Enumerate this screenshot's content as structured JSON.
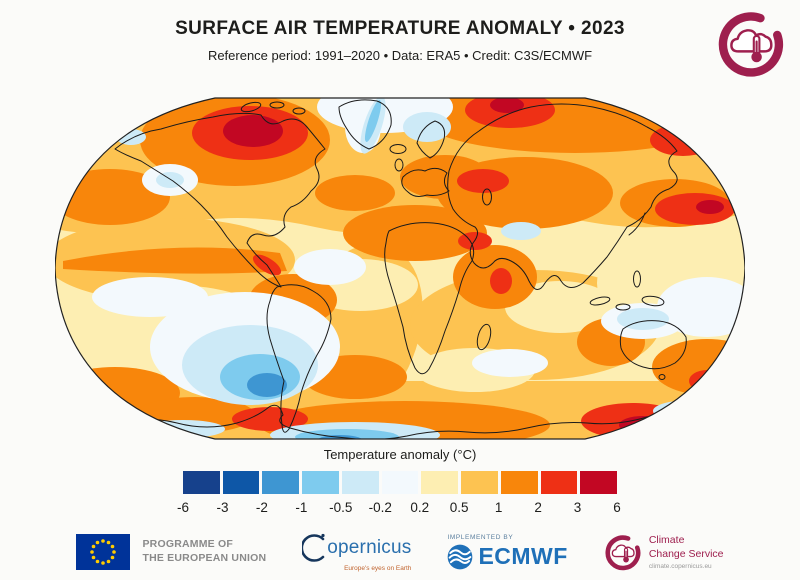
{
  "header": {
    "title": "SURFACE AIR TEMPERATURE ANOMALY • 2023",
    "subtitle": "Reference period: 1991–2020 • Data: ERA5 • Credit: C3S/ECMWF"
  },
  "colorbar": {
    "label": "Temperature anomaly (°C)",
    "tick_labels": [
      "-6",
      "-3",
      "-2",
      "-1",
      "-0.5",
      "-0.2",
      "0.2",
      "0.5",
      "1",
      "2",
      "3",
      "6"
    ],
    "segment_colors": [
      "#16418c",
      "#0e57a7",
      "#3e96d2",
      "#7ecbee",
      "#cdeaf7",
      "#f3f9fd",
      "#fdeeb2",
      "#fdc351",
      "#f8860b",
      "#ee3015",
      "#c20723"
    ]
  },
  "chart_data": {
    "type": "heatmap",
    "title": "SURFACE AIR TEMPERATURE ANOMALY • 2023",
    "subtitle": "Reference period: 1991–2020 • Data: ERA5 • Credit: C3S/ECMWF",
    "projection": "Robinson world map",
    "colorbar_label": "Temperature anomaly (°C)",
    "scale_breaks_degC": [
      -6,
      -3,
      -2,
      -1,
      -0.5,
      -0.2,
      0.2,
      0.5,
      1,
      2,
      3,
      6
    ],
    "palette": [
      "#16418c",
      "#0e57a7",
      "#3e96d2",
      "#7ecbee",
      "#cdeaf7",
      "#f3f9fd",
      "#fdeeb2",
      "#fdc351",
      "#f8860b",
      "#ee3015",
      "#c20723"
    ],
    "notable_anomalies": [
      {
        "region": "Central and northern Canada / Hudson Bay",
        "anomaly_degC": "+3 to +6"
      },
      {
        "region": "Northern Siberia (two cores)",
        "anomaly_degC": "+2 to +6"
      },
      {
        "region": "Northwest Pacific east of Japan",
        "anomaly_degC": "+2 to +6"
      },
      {
        "region": "Equatorial eastern Pacific (El Niño tongue, red core off Peru)",
        "anomaly_degC": "+1 to +3"
      },
      {
        "region": "Europe, Mediterranean, North Atlantic",
        "anomaly_degC": "+1 to +2"
      },
      {
        "region": "Sahara, Middle East, Sudan/Ethiopia core",
        "anomaly_degC": "+1 to +3"
      },
      {
        "region": "Amazon / northern South America",
        "anomaly_degC": "+1 to +2"
      },
      {
        "region": "Western Australia, New Zealand area",
        "anomaly_degC": "+1 to +3"
      },
      {
        "region": "West Antarctica / Ross sector and Antarctic interior",
        "anomaly_degC": "+2 to +6"
      },
      {
        "region": "Southern Ocean southwest of South America",
        "anomaly_degC": "-0.5 to -2"
      },
      {
        "region": "Coastal East Antarctica",
        "anomaly_degC": "-0.5 to -1"
      },
      {
        "region": "Northern Australia, Scandinavia, western US, Tibet, east Greenland strip",
        "anomaly_degC": "-0.2 to -1"
      }
    ]
  },
  "footer": {
    "eu_programme": {
      "line1": "PROGRAMME OF",
      "line2": "THE EUROPEAN UNION"
    },
    "copernicus": {
      "wordmark_text": "opernicus",
      "tagline": "Europe's eyes on Earth"
    },
    "ecmwf": {
      "implemented_by": "IMPLEMENTED BY",
      "name": "ECMWF"
    },
    "c3s": {
      "line1": "Climate",
      "line2": "Change Service",
      "url": "climate.copernicus.eu"
    }
  },
  "brand_colors": {
    "c3s_maroon": "#9e1f4e",
    "ecmwf_blue": "#1f70b8",
    "copernicus_blue": "#2a6fad",
    "eu_flag_blue": "#003399",
    "eu_star_yellow": "#ffcc00"
  }
}
